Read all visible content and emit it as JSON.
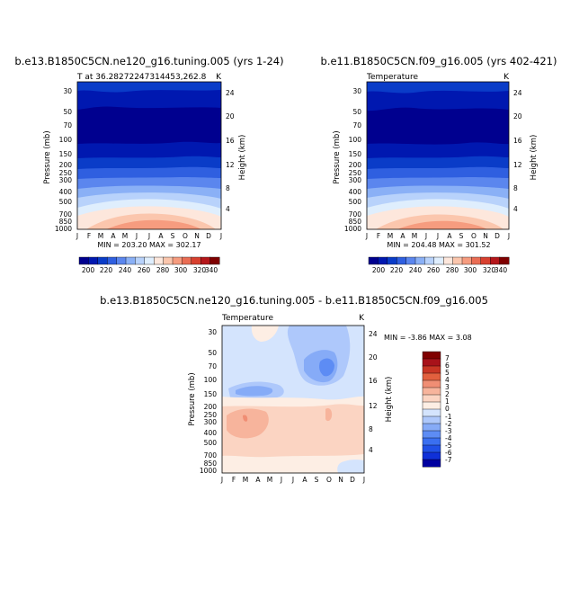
{
  "palette": {
    "abs": [
      "#00008f",
      "#0018b0",
      "#0a3cc8",
      "#2f5fe0",
      "#5b86ee",
      "#8ab0f6",
      "#b8d2fb",
      "#dfeefd",
      "#fde7dc",
      "#fbc6ad",
      "#f69c7f",
      "#ea6d54",
      "#d8402f",
      "#b5161a",
      "#7f0000"
    ],
    "diff": [
      "#0000a0",
      "#0f30d8",
      "#2050e6",
      "#3a6ff0",
      "#5d8cf4",
      "#86abf7",
      "#aec8fb",
      "#d4e4fd",
      "#fdeee4",
      "#fbd4c2",
      "#f7b49c",
      "#f08e74",
      "#e2603e",
      "#c83524",
      "#a8121a",
      "#7f0000"
    ]
  },
  "chart_data": [
    {
      "type": "contour",
      "id": "left",
      "title": "b.e13.B1850C5CN.ne120_g16.tuning.005 (yrs 1-24)",
      "left_label": "T at 36.28272247314453,262.8",
      "right_label": "K",
      "xlabel": "",
      "ylabel": "Pressure (mb)",
      "ylabel_right": "Height (km)",
      "x_ticks": [
        "J",
        "F",
        "M",
        "A",
        "M",
        "J",
        "J",
        "A",
        "S",
        "O",
        "N",
        "D",
        "J"
      ],
      "pressure_ticks": [
        "30",
        "50",
        "70",
        "100",
        "150",
        "200",
        "250",
        "300",
        "400",
        "500",
        "700",
        "850",
        "1000"
      ],
      "height_ticks": [
        "24",
        "20",
        "16",
        "12",
        "8",
        "4"
      ],
      "stats": "MIN = 203.20  MAX = 302.17",
      "colorbar_labels": [
        "200",
        "220",
        "240",
        "260",
        "280",
        "300",
        "320",
        "340"
      ],
      "levels": [
        200,
        210,
        220,
        230,
        240,
        250,
        260,
        270,
        280,
        290,
        300,
        310,
        320,
        330,
        340
      ]
    },
    {
      "type": "contour",
      "id": "right",
      "title": "b.e11.B1850C5CN.f09_g16.005 (yrs 402-421)",
      "left_label": "Temperature",
      "right_label": "K",
      "xlabel": "",
      "ylabel": "Pressure (mb)",
      "ylabel_right": "Height (km)",
      "x_ticks": [
        "J",
        "F",
        "M",
        "A",
        "M",
        "J",
        "J",
        "A",
        "S",
        "O",
        "N",
        "D",
        "J"
      ],
      "pressure_ticks": [
        "30",
        "50",
        "70",
        "100",
        "150",
        "200",
        "250",
        "300",
        "400",
        "500",
        "700",
        "850",
        "1000"
      ],
      "height_ticks": [
        "24",
        "20",
        "16",
        "12",
        "8",
        "4"
      ],
      "stats": "MIN = 204.48  MAX = 301.52",
      "colorbar_labels": [
        "200",
        "220",
        "240",
        "260",
        "280",
        "300",
        "320",
        "340"
      ],
      "levels": [
        200,
        210,
        220,
        230,
        240,
        250,
        260,
        270,
        280,
        290,
        300,
        310,
        320,
        330,
        340
      ]
    },
    {
      "type": "contour",
      "id": "diff",
      "title": "b.e13.B1850C5CN.ne120_g16.tuning.005 - b.e11.B1850C5CN.f09_g16.005",
      "left_label": "Temperature",
      "right_label": "K",
      "xlabel": "",
      "ylabel": "Pressure (mb)",
      "ylabel_right": "Height (km)",
      "x_ticks": [
        "J",
        "F",
        "M",
        "A",
        "M",
        "J",
        "J",
        "A",
        "S",
        "O",
        "N",
        "D",
        "J"
      ],
      "pressure_ticks": [
        "30",
        "50",
        "70",
        "100",
        "150",
        "200",
        "250",
        "300",
        "400",
        "500",
        "700",
        "850",
        "1000"
      ],
      "height_ticks": [
        "24",
        "20",
        "16",
        "12",
        "8",
        "4"
      ],
      "stats": "MIN =   -3.86  MAX =    3.08",
      "colorbar_labels": [
        "7",
        "6",
        "5",
        "4",
        "3",
        "2",
        "1",
        "0",
        "-1",
        "-2",
        "-3",
        "-4",
        "-5",
        "-6",
        "-7"
      ],
      "levels": [
        -7,
        -6,
        -5,
        -4,
        -3,
        -2,
        -1,
        0,
        1,
        2,
        3,
        4,
        5,
        6,
        7
      ]
    }
  ]
}
